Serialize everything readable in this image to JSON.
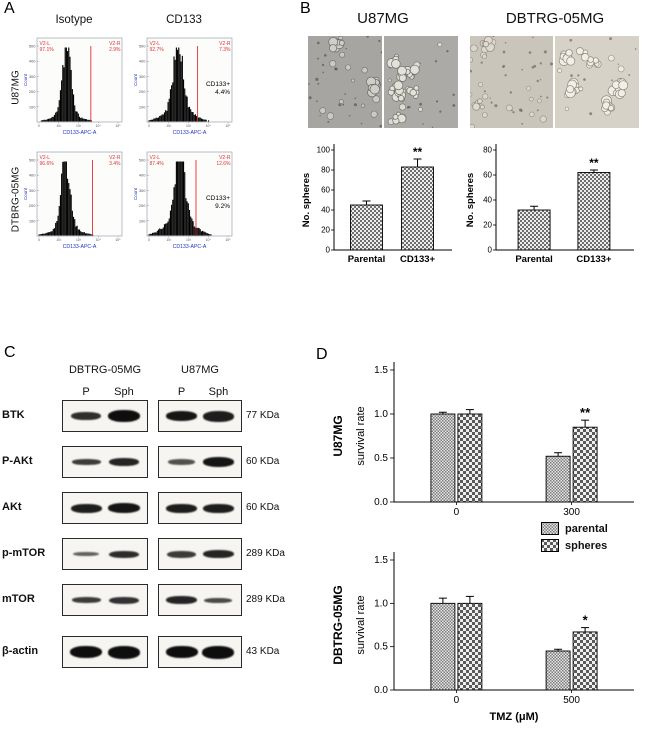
{
  "figure": {
    "panel_labels": {
      "a": "A",
      "b": "B",
      "c": "C",
      "d": "D"
    }
  },
  "flow": {
    "col_headers": [
      "Isotype",
      "CD133"
    ],
    "row_labels": [
      "U87MG",
      "DTBRG-05MG"
    ],
    "xlabel": "CD133-APC-A",
    "ylabel": "Count",
    "xticks": [
      "0",
      "10²",
      "10³",
      "10⁴",
      "10⁵"
    ],
    "yticks": [
      "100",
      "200",
      "300",
      "400",
      "500"
    ],
    "gate_color": "#e03030",
    "axis_text_color": "#2233bb",
    "plots": [
      {
        "left_gate": "V2-L",
        "left_pct": "97.1%",
        "right_gate": "V2-R",
        "right_pct": "2.9%",
        "note": [],
        "peak": 0.34,
        "gate": 0.64,
        "tail": 0.1
      },
      {
        "left_gate": "V2-L",
        "left_pct": "92.7%",
        "right_gate": "V2-R",
        "right_pct": "7.3%",
        "note": [
          "CD133+",
          "4.4%"
        ],
        "peak": 0.36,
        "gate": 0.6,
        "tail": 0.22
      },
      {
        "left_gate": "V2-L",
        "left_pct": "96.6%",
        "right_gate": "V2-R",
        "right_pct": "3.4%",
        "note": [],
        "peak": 0.33,
        "gate": 0.66,
        "tail": 0.12
      },
      {
        "left_gate": "V2-L",
        "left_pct": "87.4%",
        "right_gate": "V2-R",
        "right_pct": "12.6%",
        "note": [
          "CD133+",
          "9.2%"
        ],
        "peak": 0.38,
        "gate": 0.58,
        "tail": 0.3
      }
    ]
  },
  "micro": {
    "titles": [
      "U87MG",
      "DBTRG-05MG"
    ],
    "halves": [
      {
        "bg": "#a6a5a1",
        "speck": "#55544f",
        "blob": "#cfcec8",
        "stroke": "#6b6a66",
        "clusters": 3,
        "singles": 14
      },
      {
        "bg": "#abaaa6",
        "speck": "#55544f",
        "blob": "#e3e2da",
        "stroke": "#706f69",
        "clusters": 7,
        "singles": 8
      },
      {
        "bg": "#c9c5bb",
        "speck": "#6e6a60",
        "blob": "#dedacf",
        "stroke": "#8c887c",
        "clusters": 2,
        "singles": 18
      },
      {
        "bg": "#d6d2c8",
        "speck": "#6e6a60",
        "blob": "#f0eee5",
        "stroke": "#8c887c",
        "clusters": 8,
        "singles": 6
      }
    ]
  },
  "chart_data": [
    {
      "id": "spheres_u87",
      "type": "bar",
      "categories": [
        "Parental",
        "CD133+"
      ],
      "values": [
        45,
        83
      ],
      "errors": [
        4,
        8
      ],
      "sig": [
        "",
        "**"
      ],
      "ylabel": "No. spheres",
      "xlabel": "",
      "ylim": [
        0,
        100
      ],
      "yticks": [
        0,
        20,
        40,
        60,
        80,
        100
      ]
    },
    {
      "id": "spheres_dbtrg",
      "type": "bar",
      "categories": [
        "Parental",
        "CD133+"
      ],
      "values": [
        32,
        62
      ],
      "errors": [
        3,
        2
      ],
      "sig": [
        "",
        "**"
      ],
      "ylabel": "No. spheres",
      "xlabel": "",
      "ylim": [
        0,
        80
      ],
      "yticks": [
        0,
        20,
        40,
        60,
        80
      ]
    },
    {
      "id": "survival_u87",
      "type": "grouped_bar",
      "row_label": "U87MG",
      "ylabel": "survival rate",
      "categories": [
        "0",
        "300"
      ],
      "xlabel": "",
      "ylim": [
        0,
        1.5
      ],
      "yticks": [
        "0.0",
        "0.5",
        "1.0",
        "1.5"
      ],
      "series": [
        {
          "name": "parental",
          "values": [
            1.0,
            0.52
          ],
          "errors": [
            0.02,
            0.04
          ],
          "sig": [
            "",
            ""
          ]
        },
        {
          "name": "spheres",
          "values": [
            1.0,
            0.85
          ],
          "errors": [
            0.05,
            0.08
          ],
          "sig": [
            "",
            "**"
          ]
        }
      ]
    },
    {
      "id": "survival_dbtrg",
      "type": "grouped_bar",
      "row_label": "DBTRG-05MG",
      "ylabel": "survival rate",
      "categories": [
        "0",
        "500"
      ],
      "xlabel": "TMZ (μM)",
      "ylim": [
        0,
        1.5
      ],
      "yticks": [
        "0.0",
        "0.5",
        "1.0",
        "1.5"
      ],
      "series": [
        {
          "name": "parental",
          "values": [
            1.0,
            0.45
          ],
          "errors": [
            0.06,
            0.02
          ],
          "sig": [
            "",
            ""
          ]
        },
        {
          "name": "spheres",
          "values": [
            1.0,
            0.67
          ],
          "errors": [
            0.08,
            0.05
          ],
          "sig": [
            "",
            "*"
          ]
        }
      ]
    }
  ],
  "blots": {
    "col_headers": [
      "DBTRG-05MG",
      "U87MG"
    ],
    "lane_headers": [
      "P",
      "Sph"
    ],
    "rows": [
      {
        "label": "BTK",
        "kda": "77 KDa",
        "lanes": [
          [
            0.78,
            8
          ],
          [
            1.0,
            12
          ],
          [
            0.95,
            10
          ],
          [
            0.9,
            11
          ]
        ]
      },
      {
        "label": "P-AKt",
        "kda": "60 KDa",
        "lanes": [
          [
            0.7,
            6
          ],
          [
            0.85,
            8
          ],
          [
            0.55,
            6
          ],
          [
            0.95,
            10
          ]
        ]
      },
      {
        "label": "AKt",
        "kda": "60 KDa",
        "lanes": [
          [
            0.9,
            9
          ],
          [
            0.95,
            10
          ],
          [
            0.9,
            9
          ],
          [
            0.9,
            9
          ]
        ]
      },
      {
        "label": "p-mTOR",
        "kda": "289 KDa",
        "lanes": [
          [
            0.45,
            4
          ],
          [
            0.8,
            7
          ],
          [
            0.7,
            7
          ],
          [
            0.85,
            8
          ]
        ]
      },
      {
        "label": "mTOR",
        "kda": "289 KDa",
        "lanes": [
          [
            0.7,
            6
          ],
          [
            0.75,
            7
          ],
          [
            0.85,
            8
          ],
          [
            0.6,
            5
          ]
        ]
      },
      {
        "label": "β-actin",
        "kda": "43 KDa",
        "lanes": [
          [
            1.0,
            12
          ],
          [
            1.0,
            13
          ],
          [
            1.0,
            12
          ],
          [
            1.0,
            13
          ]
        ]
      }
    ]
  },
  "legend": {
    "entries": [
      "parental",
      "spheres"
    ]
  }
}
